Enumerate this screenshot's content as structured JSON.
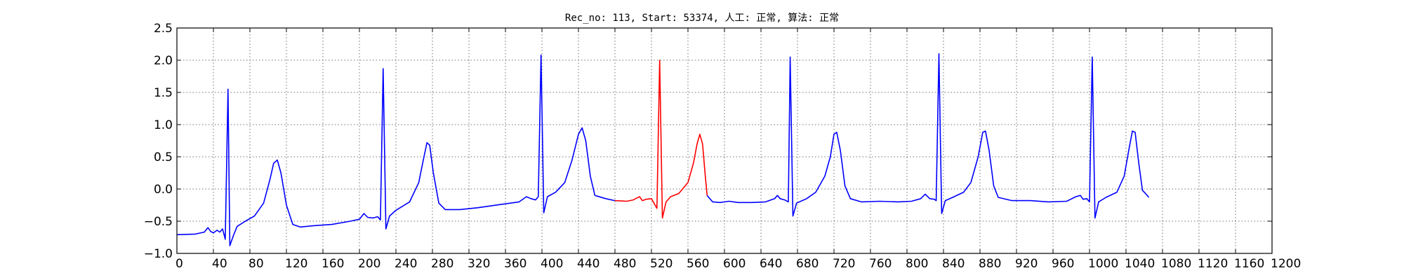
{
  "chart_data": {
    "type": "line",
    "title": "Rec_no: 113, Start: 53374, 人工: 正常, 算法: 正常",
    "xlabel": "",
    "ylabel": "",
    "xlim": [
      0,
      1200
    ],
    "ylim": [
      -1.0,
      2.5
    ],
    "yticks": [
      -1.0,
      -0.5,
      0.0,
      0.5,
      1.0,
      1.5,
      2.0,
      2.5
    ],
    "ytick_labels": [
      "−1.0",
      "−0.5",
      "0.0",
      "0.5",
      "1.0",
      "1.5",
      "2.0",
      "2.5"
    ],
    "xticks": [
      0,
      40,
      80,
      120,
      160,
      200,
      240,
      280,
      320,
      360,
      400,
      440,
      480,
      520,
      560,
      600,
      640,
      680,
      720,
      760,
      800,
      840,
      880,
      920,
      960,
      1000,
      1040,
      1080,
      1120,
      1160,
      1200
    ],
    "xtick_labels": [
      "0",
      "40",
      "80",
      "120",
      "160",
      "200",
      "240",
      "280",
      "320",
      "360",
      "400",
      "440",
      "480",
      "520",
      "560",
      "600",
      "640",
      "680",
      "720",
      "760",
      "800",
      "840",
      "880",
      "920",
      "960",
      "1000",
      "1040",
      "1080",
      "1120",
      "1160",
      "1200"
    ],
    "grid": true,
    "highlight_range": [
      480,
      581
    ],
    "colors": {
      "signal": "#0000ff",
      "highlight": "#ff0000"
    },
    "series": [
      {
        "points": [
          [
            0,
            -0.71
          ],
          [
            20,
            -0.7
          ],
          [
            30,
            -0.67
          ],
          [
            34,
            -0.6
          ],
          [
            37,
            -0.66
          ],
          [
            40,
            -0.68
          ],
          [
            44,
            -0.64
          ],
          [
            47,
            -0.67
          ],
          [
            50,
            -0.62
          ],
          [
            53,
            -0.78
          ],
          [
            56,
            1.55
          ],
          [
            58,
            -0.88
          ],
          [
            62,
            -0.72
          ],
          [
            66,
            -0.58
          ],
          [
            75,
            -0.5
          ],
          [
            85,
            -0.42
          ],
          [
            95,
            -0.22
          ],
          [
            102,
            0.15
          ],
          [
            106,
            0.4
          ],
          [
            110,
            0.45
          ],
          [
            114,
            0.25
          ],
          [
            120,
            -0.25
          ],
          [
            127,
            -0.55
          ],
          [
            135,
            -0.59
          ],
          [
            150,
            -0.57
          ],
          [
            170,
            -0.55
          ],
          [
            190,
            -0.5
          ],
          [
            200,
            -0.47
          ],
          [
            205,
            -0.38
          ],
          [
            209,
            -0.44
          ],
          [
            215,
            -0.45
          ],
          [
            220,
            -0.43
          ],
          [
            223,
            -0.48
          ],
          [
            226,
            1.87
          ],
          [
            229,
            -0.62
          ],
          [
            233,
            -0.42
          ],
          [
            240,
            -0.33
          ],
          [
            255,
            -0.2
          ],
          [
            265,
            0.1
          ],
          [
            270,
            0.45
          ],
          [
            274,
            0.72
          ],
          [
            277,
            0.68
          ],
          [
            281,
            0.25
          ],
          [
            287,
            -0.22
          ],
          [
            294,
            -0.32
          ],
          [
            310,
            -0.32
          ],
          [
            330,
            -0.29
          ],
          [
            355,
            -0.24
          ],
          [
            375,
            -0.2
          ],
          [
            383,
            -0.12
          ],
          [
            388,
            -0.15
          ],
          [
            393,
            -0.17
          ],
          [
            396,
            -0.12
          ],
          [
            399,
            2.08
          ],
          [
            402,
            -0.37
          ],
          [
            406,
            -0.12
          ],
          [
            415,
            -0.05
          ],
          [
            425,
            0.1
          ],
          [
            433,
            0.45
          ],
          [
            440,
            0.85
          ],
          [
            444,
            0.95
          ],
          [
            448,
            0.75
          ],
          [
            453,
            0.2
          ],
          [
            458,
            -0.1
          ],
          [
            470,
            -0.15
          ],
          [
            480,
            -0.18
          ]
        ]
      },
      {
        "points": [
          [
            480,
            -0.18
          ],
          [
            493,
            -0.19
          ],
          [
            500,
            -0.17
          ],
          [
            504,
            -0.14
          ],
          [
            507,
            -0.12
          ],
          [
            510,
            -0.18
          ],
          [
            514,
            -0.16
          ],
          [
            520,
            -0.15
          ],
          [
            526,
            -0.3
          ],
          [
            529,
            2.0
          ],
          [
            532,
            -0.45
          ],
          [
            536,
            -0.2
          ],
          [
            541,
            -0.12
          ],
          [
            550,
            -0.07
          ],
          [
            560,
            0.1
          ],
          [
            566,
            0.4
          ],
          [
            570,
            0.7
          ],
          [
            573,
            0.85
          ],
          [
            576,
            0.7
          ],
          [
            579,
            0.2
          ],
          [
            581,
            -0.1
          ]
        ]
      },
      {
        "points": [
          [
            581,
            -0.1
          ],
          [
            587,
            -0.2
          ],
          [
            595,
            -0.21
          ],
          [
            605,
            -0.19
          ],
          [
            615,
            -0.21
          ],
          [
            630,
            -0.21
          ],
          [
            645,
            -0.2
          ],
          [
            655,
            -0.15
          ],
          [
            658,
            -0.1
          ],
          [
            661,
            -0.15
          ],
          [
            666,
            -0.17
          ],
          [
            670,
            -0.2
          ],
          [
            672,
            2.05
          ],
          [
            675,
            -0.42
          ],
          [
            679,
            -0.22
          ],
          [
            690,
            -0.15
          ],
          [
            700,
            -0.05
          ],
          [
            710,
            0.2
          ],
          [
            716,
            0.5
          ],
          [
            720,
            0.85
          ],
          [
            723,
            0.88
          ],
          [
            727,
            0.6
          ],
          [
            732,
            0.05
          ],
          [
            738,
            -0.15
          ],
          [
            750,
            -0.2
          ],
          [
            770,
            -0.19
          ],
          [
            790,
            -0.2
          ],
          [
            805,
            -0.19
          ],
          [
            815,
            -0.15
          ],
          [
            820,
            -0.08
          ],
          [
            825,
            -0.15
          ],
          [
            830,
            -0.16
          ],
          [
            832,
            -0.18
          ],
          [
            835,
            2.1
          ],
          [
            838,
            -0.38
          ],
          [
            842,
            -0.18
          ],
          [
            850,
            -0.13
          ],
          [
            862,
            -0.05
          ],
          [
            870,
            0.1
          ],
          [
            878,
            0.5
          ],
          [
            883,
            0.88
          ],
          [
            886,
            0.9
          ],
          [
            890,
            0.6
          ],
          [
            895,
            0.05
          ],
          [
            900,
            -0.13
          ],
          [
            915,
            -0.18
          ],
          [
            935,
            -0.18
          ],
          [
            955,
            -0.2
          ],
          [
            975,
            -0.19
          ],
          [
            985,
            -0.12
          ],
          [
            990,
            -0.1
          ],
          [
            993,
            -0.16
          ],
          [
            997,
            -0.15
          ],
          [
            1000,
            -0.2
          ],
          [
            1003,
            2.05
          ],
          [
            1006,
            -0.45
          ],
          [
            1010,
            -0.2
          ],
          [
            1018,
            -0.13
          ],
          [
            1030,
            -0.05
          ],
          [
            1038,
            0.2
          ],
          [
            1043,
            0.6
          ],
          [
            1047,
            0.9
          ],
          [
            1050,
            0.88
          ],
          [
            1054,
            0.4
          ],
          [
            1058,
            -0.02
          ],
          [
            1062,
            -0.08
          ],
          [
            1065,
            -0.13
          ]
        ]
      }
    ]
  }
}
